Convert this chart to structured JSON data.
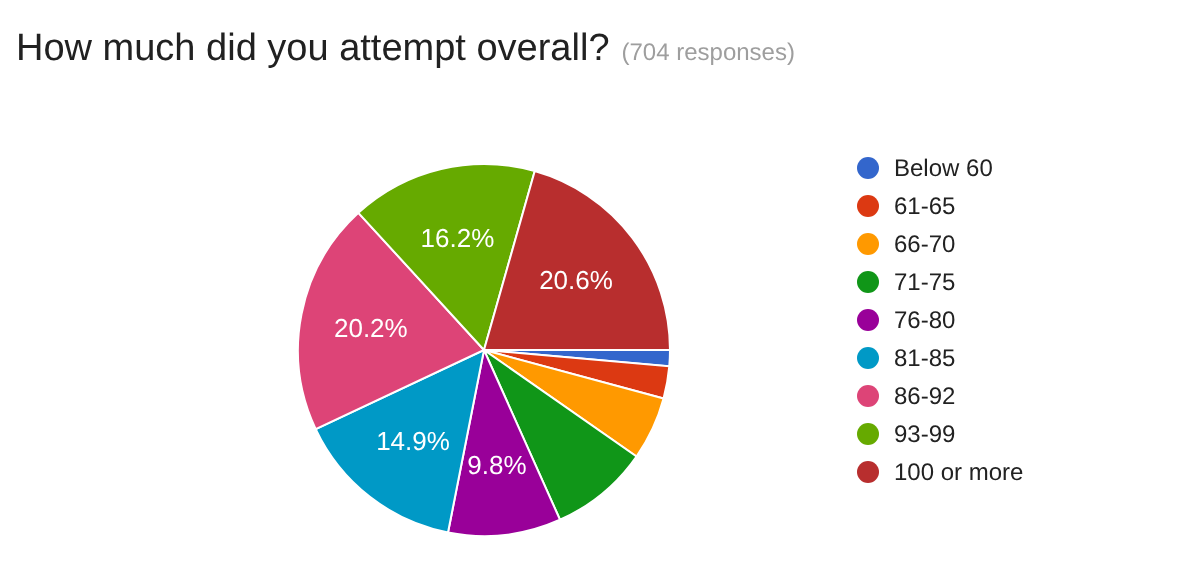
{
  "chart_data": {
    "type": "pie",
    "title": "How much did you attempt overall?",
    "subtitle": "(704 responses)",
    "categories": [
      "Below 60",
      "61-65",
      "66-70",
      "71-75",
      "76-80",
      "81-85",
      "86-92",
      "93-99",
      "100 or more"
    ],
    "values": [
      1.4,
      2.8,
      5.5,
      8.6,
      9.8,
      14.9,
      20.2,
      16.2,
      20.6
    ],
    "value_labels": [
      null,
      null,
      null,
      null,
      "9.8%",
      "14.9%",
      "20.2%",
      "16.2%",
      "20.6%"
    ],
    "colors": [
      "#3366cc",
      "#dc3912",
      "#ff9900",
      "#109618",
      "#990099",
      "#0099c6",
      "#dd4477",
      "#66aa00",
      "#b82e2e"
    ],
    "legend": "right"
  }
}
